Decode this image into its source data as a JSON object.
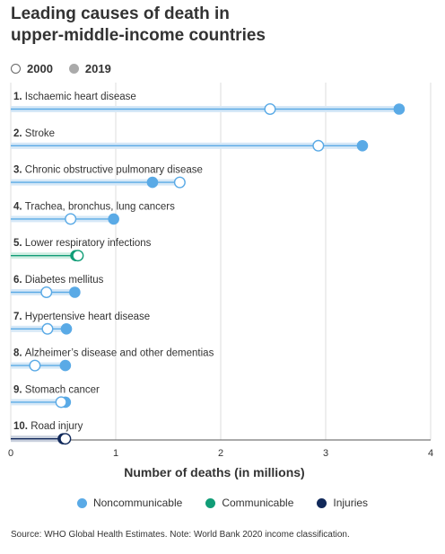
{
  "title_line1": "Leading causes of death in",
  "title_line2": "upper-middle-income countries",
  "year_legend": {
    "first": "2000",
    "second": "2019"
  },
  "legend": {
    "noncommunicable": "Noncommunicable",
    "communicable": "Communicable",
    "injuries": "Injuries"
  },
  "source": "Source: WHO Global Health Estimates. Note: World Bank 2020 income classification.",
  "colors": {
    "noncommunicable": "#5aaae6",
    "communicable": "#119d77",
    "injuries": "#11295a",
    "track_noncommunicable": "#d6e8f7",
    "track_communicable": "#cfeee2",
    "track_injuries": "#c9d0dd",
    "grid": "#dddddd",
    "axis": "#555555"
  },
  "chart_data": {
    "type": "dumbbell",
    "xlabel": "Number of deaths (in millions)",
    "xlim": [
      0,
      4
    ],
    "xticks": [
      0,
      1,
      2,
      3,
      4
    ],
    "grid": true,
    "series": [
      {
        "name": "2000",
        "marker": "open circle"
      },
      {
        "name": "2019",
        "marker": "filled circle"
      }
    ],
    "rows": [
      {
        "rank": "1.",
        "label": "Ischaemic heart disease",
        "category": "noncommunicable",
        "v2000": 2.47,
        "v2019": 3.7
      },
      {
        "rank": "2.",
        "label": "Stroke",
        "category": "noncommunicable",
        "v2000": 2.93,
        "v2019": 3.35
      },
      {
        "rank": "3.",
        "label": "Chronic obstructive pulmonary disease",
        "category": "noncommunicable",
        "v2000": 1.61,
        "v2019": 1.35
      },
      {
        "rank": "4.",
        "label": "Trachea, bronchus, lung cancers",
        "category": "noncommunicable",
        "v2000": 0.57,
        "v2019": 0.98
      },
      {
        "rank": "5.",
        "label": "Lower respiratory infections",
        "category": "communicable",
        "v2000": 0.64,
        "v2019": 0.62
      },
      {
        "rank": "6.",
        "label": "Diabetes mellitus",
        "category": "noncommunicable",
        "v2000": 0.34,
        "v2019": 0.61
      },
      {
        "rank": "7.",
        "label": "Hypertensive heart disease",
        "category": "noncommunicable",
        "v2000": 0.35,
        "v2019": 0.53
      },
      {
        "rank": "8.",
        "label": "Alzheimer’s disease and other dementias",
        "category": "noncommunicable",
        "v2000": 0.23,
        "v2019": 0.52
      },
      {
        "rank": "9.",
        "label": "Stomach cancer",
        "category": "noncommunicable",
        "v2000": 0.48,
        "v2019": 0.52
      },
      {
        "rank": "10.",
        "label": "Road injury",
        "category": "injuries",
        "v2000": 0.52,
        "v2019": 0.5
      }
    ]
  }
}
